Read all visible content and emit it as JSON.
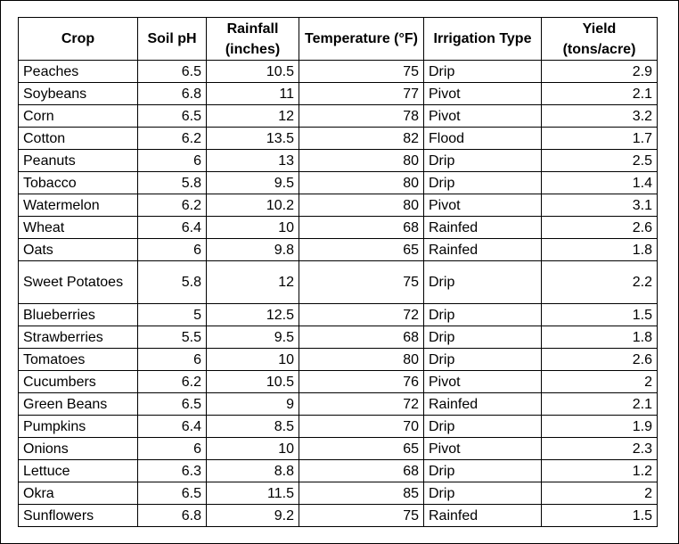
{
  "headers": [
    "Crop",
    "Soil pH",
    "Rainfall (inches)",
    "Temperature (°F)",
    "Irrigation Type",
    "Yield (tons/acre)"
  ],
  "rows": [
    [
      "Peaches",
      "6.5",
      "10.5",
      "75",
      "Drip",
      "2.9"
    ],
    [
      "Soybeans",
      "6.8",
      "11",
      "77",
      "Pivot",
      "2.1"
    ],
    [
      "Corn",
      "6.5",
      "12",
      "78",
      "Pivot",
      "3.2"
    ],
    [
      "Cotton",
      "6.2",
      "13.5",
      "82",
      "Flood",
      "1.7"
    ],
    [
      "Peanuts",
      "6",
      "13",
      "80",
      "Drip",
      "2.5"
    ],
    [
      "Tobacco",
      "5.8",
      "9.5",
      "80",
      "Drip",
      "1.4"
    ],
    [
      "Watermelon",
      "6.2",
      "10.2",
      "80",
      "Pivot",
      "3.1"
    ],
    [
      "Wheat",
      "6.4",
      "10",
      "68",
      "Rainfed",
      "2.6"
    ],
    [
      "Oats",
      "6",
      "9.8",
      "65",
      "Rainfed",
      "1.8"
    ],
    [
      "Sweet Potatoes",
      "5.8",
      "12",
      "75",
      "Drip",
      "2.2"
    ],
    [
      "Blueberries",
      "5",
      "12.5",
      "72",
      "Drip",
      "1.5"
    ],
    [
      "Strawberries",
      "5.5",
      "9.5",
      "68",
      "Drip",
      "1.8"
    ],
    [
      "Tomatoes",
      "6",
      "10",
      "80",
      "Drip",
      "2.6"
    ],
    [
      "Cucumbers",
      "6.2",
      "10.5",
      "76",
      "Pivot",
      "2"
    ],
    [
      "Green Beans",
      "6.5",
      "9",
      "72",
      "Rainfed",
      "2.1"
    ],
    [
      "Pumpkins",
      "6.4",
      "8.5",
      "70",
      "Drip",
      "1.9"
    ],
    [
      "Onions",
      "6",
      "10",
      "65",
      "Pivot",
      "2.3"
    ],
    [
      "Lettuce",
      "6.3",
      "8.8",
      "68",
      "Drip",
      "1.2"
    ],
    [
      "Okra",
      "6.5",
      "11.5",
      "85",
      "Drip",
      "2"
    ],
    [
      "Sunflowers",
      "6.8",
      "9.2",
      "75",
      "Rainfed",
      "1.5"
    ]
  ]
}
